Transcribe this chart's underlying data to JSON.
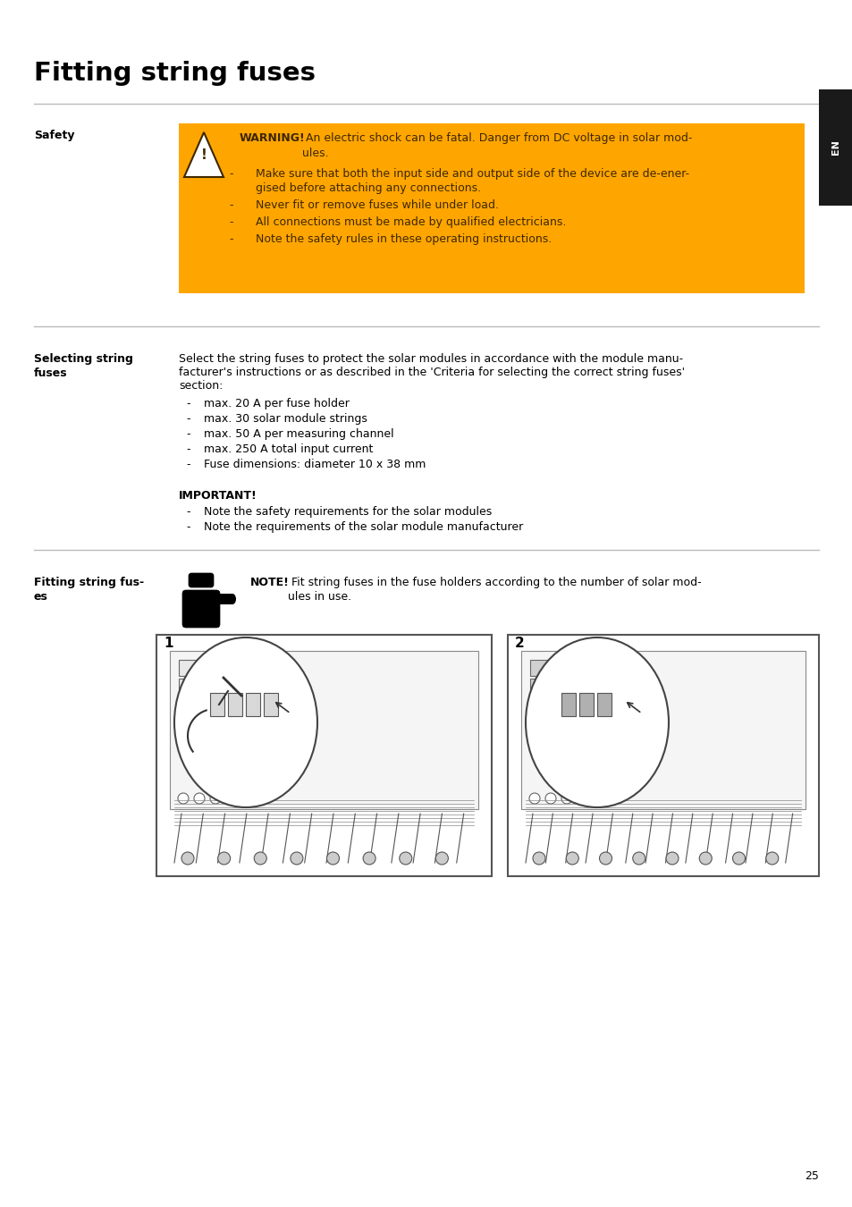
{
  "title": "Fitting string fuses",
  "page_number": "25",
  "tab_label": "EN",
  "section1_label": "Safety",
  "warning_title": "WARNING!",
  "warning_bullets": [
    "Make sure that both the input side and output side of the device are de-ener-\ngised before attaching any connections.",
    "Never fit or remove fuses while under load.",
    "All connections must be made by qualified electricians.",
    "Note the safety rules in these operating instructions."
  ],
  "section2_label_line1": "Selecting string",
  "section2_label_line2": "fuses",
  "section2_intro_line1": "Select the string fuses to protect the solar modules in accordance with the module manu-",
  "section2_intro_line2": "facturer's instructions or as described in the 'Criteria for selecting the correct string fuses'",
  "section2_intro_line3": "section:",
  "section2_bullets": [
    "max. 20 A per fuse holder",
    "max. 30 solar module strings",
    "max. 50 A per measuring channel",
    "max. 250 A total input current",
    "Fuse dimensions: diameter 10 x 38 mm"
  ],
  "important_title": "IMPORTANT!",
  "important_bullets": [
    "Note the safety requirements for the solar modules",
    "Note the requirements of the solar module manufacturer"
  ],
  "section3_label_line1": "Fitting string fus-",
  "section3_label_line2": "es",
  "note_title": "NOTE!",
  "note_text_line1": " Fit string fuses in the fuse holders according to the number of solar mod-",
  "note_text_line2": "ules in use.",
  "warning_bg": "#FFA500",
  "warning_text_color": "#3d2800",
  "title_color": "#000000",
  "body_color": "#000000",
  "tab_bg": "#1a1a1a",
  "tab_text": "#ffffff",
  "divider_color": "#bbbbbb",
  "fig_width": 9.54,
  "fig_height": 13.5,
  "dpi": 100
}
